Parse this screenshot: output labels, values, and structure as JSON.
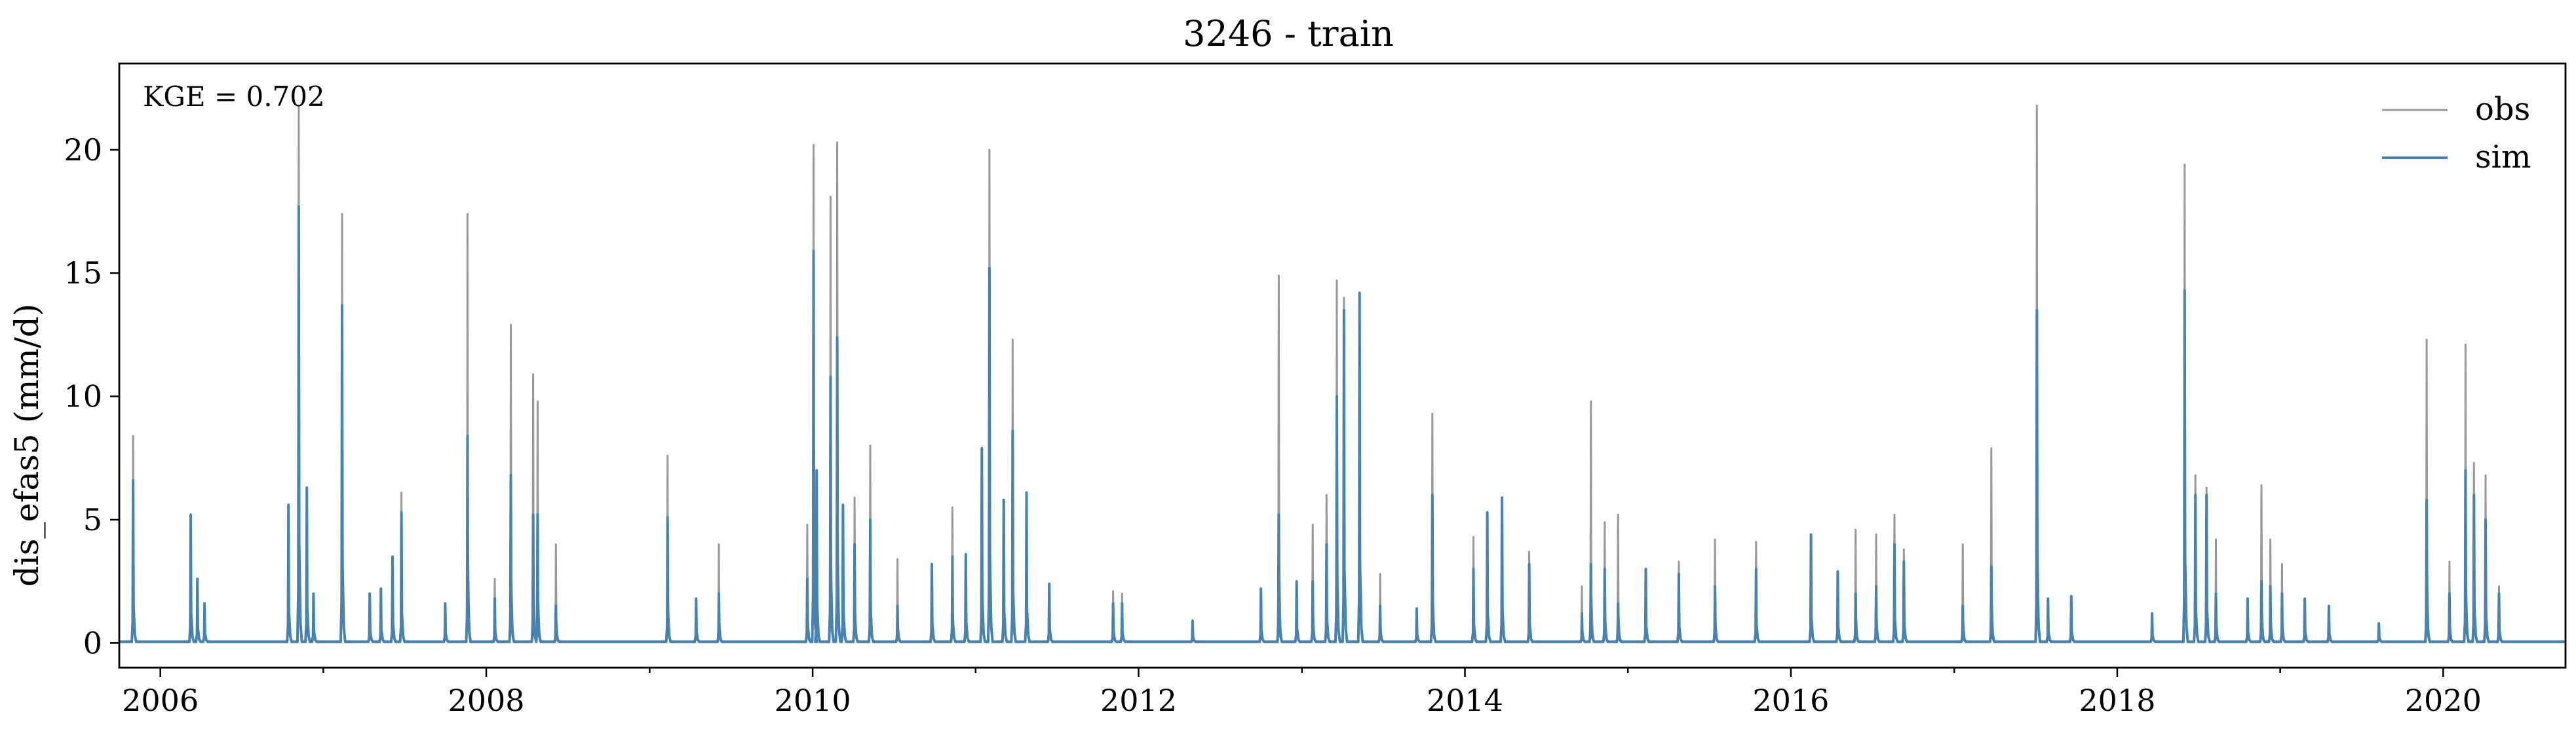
{
  "chart_data": {
    "type": "line",
    "title": "3246 - train",
    "xlabel": "",
    "ylabel": "dis_efas5 (mm/d)",
    "annotation": "KGE = 0.702",
    "x_range": [
      "2005-10-01",
      "2020-10-01"
    ],
    "ylim": [
      -1.0,
      23.5
    ],
    "x_tick_labels": [
      "2006",
      "2008",
      "2010",
      "2012",
      "2014",
      "2016",
      "2018",
      "2020"
    ],
    "x_ticks": [
      "2006-01-01",
      "2008-01-01",
      "2010-01-01",
      "2012-01-01",
      "2014-01-01",
      "2016-01-01",
      "2018-01-01",
      "2020-01-01"
    ],
    "x_minor_ticks": [
      "2007-01-01",
      "2009-01-01",
      "2011-01-01",
      "2013-01-01",
      "2015-01-01",
      "2017-01-01",
      "2019-01-01"
    ],
    "y_ticks": [
      0,
      5,
      10,
      15,
      20
    ],
    "y_tick_labels": [
      "0",
      "5",
      "10",
      "15",
      "20"
    ],
    "legend": {
      "position": "top-right",
      "entries": [
        "obs",
        "sim"
      ]
    },
    "grid": false,
    "series": [
      {
        "name": "obs",
        "color": "#999999",
        "baseline": 0.05,
        "peaks": [
          [
            "2005-11-01",
            8.4
          ],
          [
            "2006-03-10",
            5.2
          ],
          [
            "2006-03-25",
            2.6
          ],
          [
            "2006-04-10",
            1.6
          ],
          [
            "2006-10-15",
            5.6
          ],
          [
            "2006-11-07",
            21.8
          ],
          [
            "2006-11-25",
            6.3
          ],
          [
            "2006-12-10",
            2.0
          ],
          [
            "2007-02-12",
            17.4
          ],
          [
            "2007-04-15",
            2.0
          ],
          [
            "2007-05-10",
            2.2
          ],
          [
            "2007-06-05",
            3.5
          ],
          [
            "2007-06-25",
            6.1
          ],
          [
            "2007-10-01",
            1.6
          ],
          [
            "2007-11-20",
            17.4
          ],
          [
            "2008-01-20",
            2.6
          ],
          [
            "2008-02-25",
            12.9
          ],
          [
            "2008-04-15",
            10.9
          ],
          [
            "2008-04-25",
            9.8
          ],
          [
            "2008-06-05",
            4.0
          ],
          [
            "2009-02-10",
            7.6
          ],
          [
            "2009-04-15",
            1.8
          ],
          [
            "2009-06-05",
            4.0
          ],
          [
            "2009-12-20",
            4.8
          ],
          [
            "2010-01-03",
            20.2
          ],
          [
            "2010-01-10",
            7.0
          ],
          [
            "2010-02-10",
            18.1
          ],
          [
            "2010-02-25",
            20.3
          ],
          [
            "2010-03-10",
            5.6
          ],
          [
            "2010-04-05",
            5.9
          ],
          [
            "2010-05-10",
            8.0
          ],
          [
            "2010-07-10",
            3.4
          ],
          [
            "2010-09-25",
            3.2
          ],
          [
            "2010-11-10",
            5.5
          ],
          [
            "2010-12-10",
            3.6
          ],
          [
            "2011-01-15",
            7.9
          ],
          [
            "2011-02-01",
            20.0
          ],
          [
            "2011-03-05",
            5.8
          ],
          [
            "2011-03-25",
            12.3
          ],
          [
            "2011-04-25",
            6.1
          ],
          [
            "2011-06-15",
            2.4
          ],
          [
            "2011-11-05",
            2.1
          ],
          [
            "2011-11-25",
            2.0
          ],
          [
            "2012-05-01",
            0.9
          ],
          [
            "2012-10-01",
            2.2
          ],
          [
            "2012-11-10",
            14.9
          ],
          [
            "2012-12-20",
            2.5
          ],
          [
            "2013-01-25",
            4.8
          ],
          [
            "2013-02-25",
            6.0
          ],
          [
            "2013-03-20",
            14.7
          ],
          [
            "2013-04-05",
            14.0
          ],
          [
            "2013-05-10",
            14.2
          ],
          [
            "2013-06-25",
            2.8
          ],
          [
            "2013-09-15",
            1.4
          ],
          [
            "2013-10-20",
            9.3
          ],
          [
            "2014-01-20",
            4.3
          ],
          [
            "2014-02-20",
            5.3
          ],
          [
            "2014-03-25",
            5.9
          ],
          [
            "2014-05-25",
            3.7
          ],
          [
            "2014-09-20",
            2.3
          ],
          [
            "2014-10-10",
            9.8
          ],
          [
            "2014-11-10",
            4.9
          ],
          [
            "2014-12-10",
            5.2
          ],
          [
            "2015-02-10",
            3.0
          ],
          [
            "2015-04-25",
            3.3
          ],
          [
            "2015-07-15",
            4.2
          ],
          [
            "2015-10-15",
            4.1
          ],
          [
            "2016-02-15",
            4.4
          ],
          [
            "2016-04-15",
            2.9
          ],
          [
            "2016-05-25",
            4.6
          ],
          [
            "2016-07-10",
            4.4
          ],
          [
            "2016-08-20",
            5.2
          ],
          [
            "2016-09-10",
            3.8
          ],
          [
            "2017-01-20",
            4.0
          ],
          [
            "2017-03-25",
            7.9
          ],
          [
            "2017-07-05",
            21.8
          ],
          [
            "2017-07-30",
            1.8
          ],
          [
            "2017-09-20",
            1.9
          ],
          [
            "2018-03-20",
            1.2
          ],
          [
            "2018-06-01",
            19.4
          ],
          [
            "2018-06-25",
            6.8
          ],
          [
            "2018-07-20",
            6.3
          ],
          [
            "2018-08-10",
            4.2
          ],
          [
            "2018-10-20",
            1.8
          ],
          [
            "2018-11-20",
            6.4
          ],
          [
            "2018-12-10",
            4.2
          ],
          [
            "2019-01-05",
            3.2
          ],
          [
            "2019-02-25",
            1.8
          ],
          [
            "2019-04-20",
            1.5
          ],
          [
            "2019-08-10",
            0.8
          ],
          [
            "2019-11-25",
            12.3
          ],
          [
            "2020-01-15",
            3.3
          ],
          [
            "2020-02-20",
            12.1
          ],
          [
            "2020-03-10",
            7.3
          ],
          [
            "2020-04-05",
            6.8
          ],
          [
            "2020-05-05",
            2.3
          ]
        ]
      },
      {
        "name": "sim",
        "color": "#4682b4",
        "baseline": 0.05,
        "peaks": [
          [
            "2005-11-01",
            6.6
          ],
          [
            "2006-03-10",
            5.2
          ],
          [
            "2006-03-25",
            2.6
          ],
          [
            "2006-04-10",
            1.6
          ],
          [
            "2006-10-15",
            5.6
          ],
          [
            "2006-11-07",
            17.7
          ],
          [
            "2006-11-25",
            6.3
          ],
          [
            "2006-12-10",
            2.0
          ],
          [
            "2007-02-12",
            13.7
          ],
          [
            "2007-04-15",
            2.0
          ],
          [
            "2007-05-10",
            2.2
          ],
          [
            "2007-06-05",
            3.5
          ],
          [
            "2007-06-25",
            5.3
          ],
          [
            "2007-10-01",
            1.6
          ],
          [
            "2007-11-20",
            8.4
          ],
          [
            "2008-01-20",
            1.8
          ],
          [
            "2008-02-25",
            6.8
          ],
          [
            "2008-04-15",
            5.2
          ],
          [
            "2008-04-25",
            5.2
          ],
          [
            "2008-06-05",
            1.5
          ],
          [
            "2009-02-10",
            5.1
          ],
          [
            "2009-04-15",
            1.8
          ],
          [
            "2009-06-05",
            2.0
          ],
          [
            "2009-12-20",
            2.6
          ],
          [
            "2010-01-03",
            15.9
          ],
          [
            "2010-01-10",
            7.0
          ],
          [
            "2010-02-10",
            10.8
          ],
          [
            "2010-02-25",
            12.4
          ],
          [
            "2010-03-10",
            5.6
          ],
          [
            "2010-04-05",
            4.0
          ],
          [
            "2010-05-10",
            5.0
          ],
          [
            "2010-07-10",
            1.5
          ],
          [
            "2010-09-25",
            3.2
          ],
          [
            "2010-11-10",
            3.5
          ],
          [
            "2010-12-10",
            3.6
          ],
          [
            "2011-01-15",
            7.9
          ],
          [
            "2011-02-01",
            15.2
          ],
          [
            "2011-03-05",
            5.8
          ],
          [
            "2011-03-25",
            8.6
          ],
          [
            "2011-04-25",
            6.1
          ],
          [
            "2011-06-15",
            2.4
          ],
          [
            "2011-11-05",
            1.6
          ],
          [
            "2011-11-25",
            1.6
          ],
          [
            "2012-05-01",
            0.9
          ],
          [
            "2012-10-01",
            2.2
          ],
          [
            "2012-11-10",
            5.2
          ],
          [
            "2012-12-20",
            2.5
          ],
          [
            "2013-01-25",
            2.5
          ],
          [
            "2013-02-25",
            4.0
          ],
          [
            "2013-03-20",
            10.0
          ],
          [
            "2013-04-05",
            13.5
          ],
          [
            "2013-05-10",
            14.2
          ],
          [
            "2013-06-25",
            1.5
          ],
          [
            "2013-09-15",
            1.4
          ],
          [
            "2013-10-20",
            6.0
          ],
          [
            "2014-01-20",
            3.0
          ],
          [
            "2014-02-20",
            5.3
          ],
          [
            "2014-03-25",
            5.9
          ],
          [
            "2014-05-25",
            3.2
          ],
          [
            "2014-09-20",
            1.2
          ],
          [
            "2014-10-10",
            3.2
          ],
          [
            "2014-11-10",
            3.0
          ],
          [
            "2014-12-10",
            1.6
          ],
          [
            "2015-02-10",
            3.0
          ],
          [
            "2015-04-25",
            2.8
          ],
          [
            "2015-07-15",
            2.3
          ],
          [
            "2015-10-15",
            3.0
          ],
          [
            "2016-02-15",
            4.4
          ],
          [
            "2016-04-15",
            2.9
          ],
          [
            "2016-05-25",
            2.0
          ],
          [
            "2016-07-10",
            2.3
          ],
          [
            "2016-08-20",
            4.0
          ],
          [
            "2016-09-10",
            3.3
          ],
          [
            "2017-01-20",
            1.5
          ],
          [
            "2017-03-25",
            3.1
          ],
          [
            "2017-07-05",
            13.5
          ],
          [
            "2017-07-30",
            1.8
          ],
          [
            "2017-09-20",
            1.9
          ],
          [
            "2018-03-20",
            1.2
          ],
          [
            "2018-06-01",
            14.3
          ],
          [
            "2018-06-25",
            6.0
          ],
          [
            "2018-07-20",
            6.0
          ],
          [
            "2018-08-10",
            2.0
          ],
          [
            "2018-10-20",
            1.8
          ],
          [
            "2018-11-20",
            2.5
          ],
          [
            "2018-12-10",
            2.3
          ],
          [
            "2019-01-05",
            2.0
          ],
          [
            "2019-02-25",
            1.8
          ],
          [
            "2019-04-20",
            1.5
          ],
          [
            "2019-08-10",
            0.8
          ],
          [
            "2019-11-25",
            5.8
          ],
          [
            "2020-01-15",
            2.0
          ],
          [
            "2020-02-20",
            7.0
          ],
          [
            "2020-03-10",
            6.0
          ],
          [
            "2020-04-05",
            5.0
          ],
          [
            "2020-05-05",
            2.0
          ]
        ]
      }
    ]
  }
}
